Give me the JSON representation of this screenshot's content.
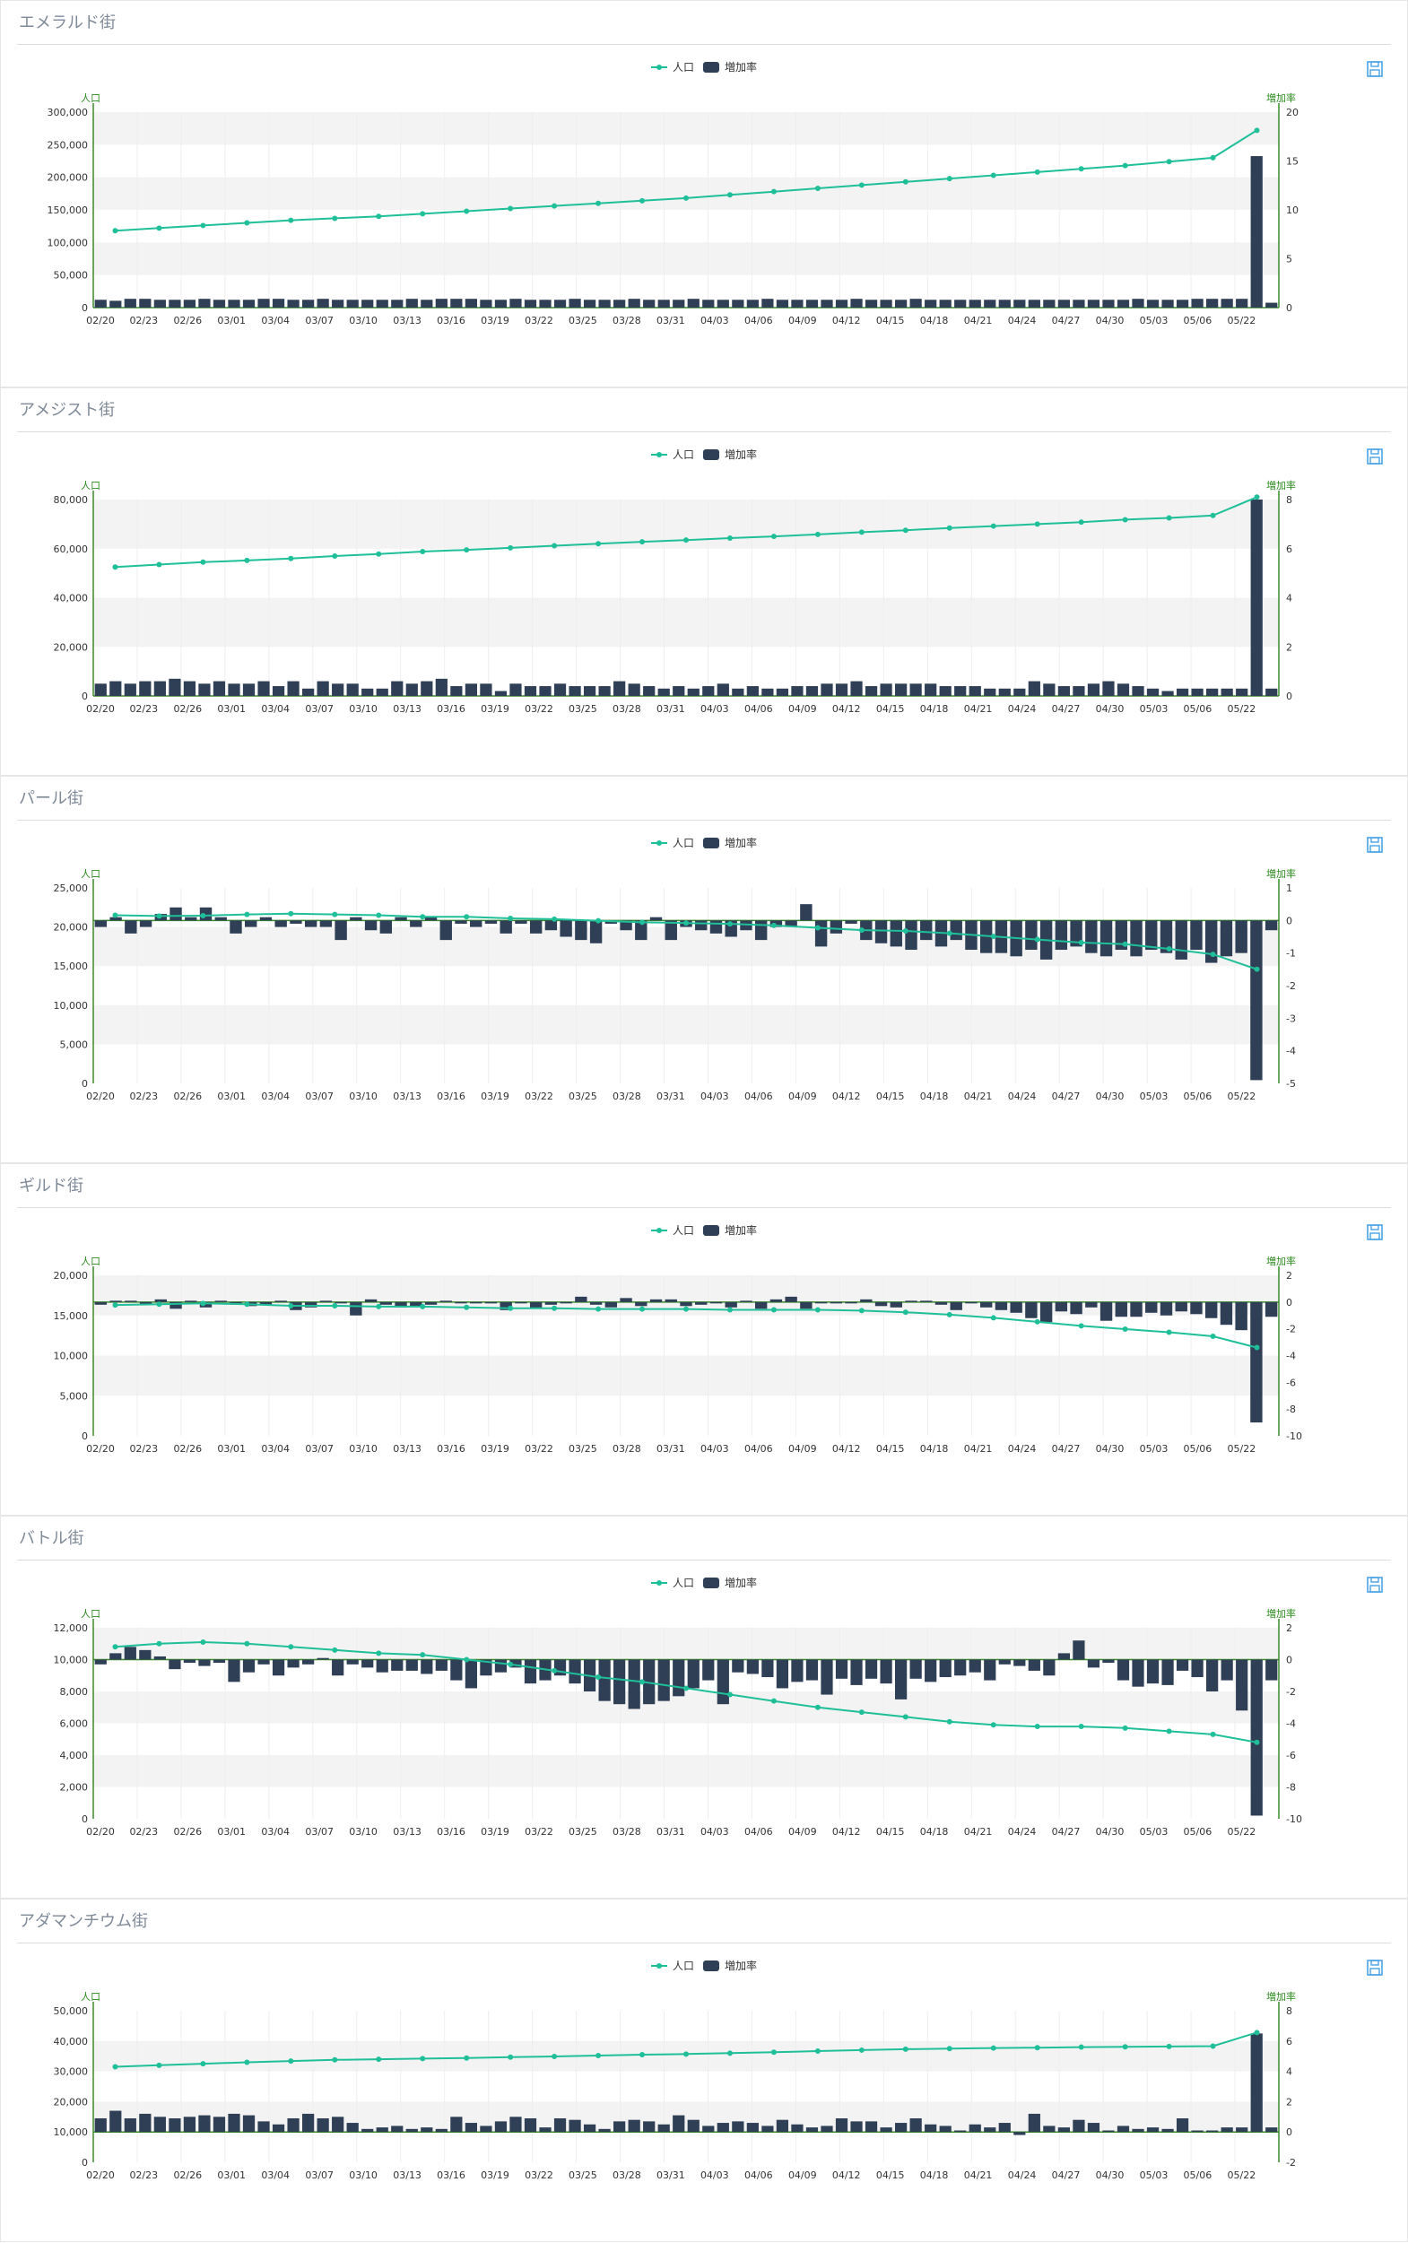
{
  "legend": {
    "line_label": "人口",
    "bar_label": "増加率"
  },
  "axis_names": {
    "left": "人口",
    "right": "増加率"
  },
  "colors": {
    "line": "#1fbf9a",
    "bar": "#2f3f55",
    "axis": "#3a8a2a",
    "band": "#f3f3f3",
    "title": "#7f8a99",
    "save_icon": "#4aa3e6"
  },
  "icons": {
    "save": "save-icon"
  },
  "x_tick_labels": [
    "02/20",
    "02/23",
    "02/26",
    "03/01",
    "03/04",
    "03/07",
    "03/10",
    "03/13",
    "03/16",
    "03/19",
    "03/22",
    "03/25",
    "03/28",
    "03/31",
    "04/03",
    "04/06",
    "04/09",
    "04/12",
    "04/15",
    "04/18",
    "04/21",
    "04/24",
    "04/27",
    "04/30",
    "05/03",
    "05/06",
    "05/22"
  ],
  "chart_data": [
    {
      "title": "エメラルド街",
      "type": "bar+line",
      "x": [
        "02/20",
        "02/23",
        "02/26",
        "03/01",
        "03/04",
        "03/07",
        "03/10",
        "03/13",
        "03/16",
        "03/19",
        "03/22",
        "03/25",
        "03/28",
        "03/31",
        "04/03",
        "04/06",
        "04/09",
        "04/12",
        "04/15",
        "04/18",
        "04/21",
        "04/24",
        "04/27",
        "04/30",
        "05/03",
        "05/06",
        "05/22"
      ],
      "y_left": {
        "min": 0,
        "max": 300000,
        "ticks": [
          "0",
          "50,000",
          "100,000",
          "150,000",
          "200,000",
          "250,000",
          "300,000"
        ]
      },
      "y_right": {
        "min": 0,
        "max": 20,
        "ticks": [
          "0",
          "5",
          "10",
          "15",
          "20"
        ]
      },
      "population": [
        118000,
        122000,
        126000,
        130000,
        134000,
        137000,
        140000,
        144000,
        148000,
        152000,
        156000,
        160000,
        164000,
        168000,
        173000,
        178000,
        183000,
        188000,
        193000,
        198000,
        203000,
        208000,
        213000,
        218000,
        224000,
        230000,
        272000
      ],
      "growth_rate": [
        0.8,
        0.7,
        0.9,
        0.9,
        0.8,
        0.8,
        0.8,
        0.9,
        0.8,
        0.8,
        0.8,
        0.9,
        0.9,
        0.8,
        0.8,
        0.9,
        0.8,
        0.8,
        0.8,
        0.8,
        0.8,
        0.9,
        0.8,
        0.9,
        0.9,
        0.9,
        0.8,
        0.8,
        0.9,
        0.8,
        0.8,
        0.8,
        0.9,
        0.8,
        0.8,
        0.8,
        0.9,
        0.8,
        0.8,
        0.8,
        0.9,
        0.8,
        0.8,
        0.8,
        0.8,
        0.9,
        0.8,
        0.8,
        0.8,
        0.8,
        0.8,
        0.9,
        0.8,
        0.8,
        0.8,
        0.9,
        0.8,
        0.8,
        0.8,
        0.8,
        0.8,
        0.8,
        0.8,
        0.8,
        0.8,
        0.8,
        0.8,
        0.8,
        0.8,
        0.8,
        0.9,
        0.8,
        0.8,
        0.8,
        0.9,
        0.9,
        0.9,
        0.9,
        15.5,
        0.5
      ]
    },
    {
      "title": "アメジスト街",
      "type": "bar+line",
      "x": [
        "02/20",
        "02/23",
        "02/26",
        "03/01",
        "03/04",
        "03/07",
        "03/10",
        "03/13",
        "03/16",
        "03/19",
        "03/22",
        "03/25",
        "03/28",
        "03/31",
        "04/03",
        "04/06",
        "04/09",
        "04/12",
        "04/15",
        "04/18",
        "04/21",
        "04/24",
        "04/27",
        "04/30",
        "05/03",
        "05/06",
        "05/22"
      ],
      "y_left": {
        "min": 0,
        "max": 80000,
        "ticks": [
          "0",
          "20,000",
          "40,000",
          "60,000",
          "80,000"
        ]
      },
      "y_right": {
        "min": 0,
        "max": 8,
        "ticks": [
          "0",
          "2",
          "4",
          "6",
          "8"
        ]
      },
      "population": [
        52500,
        53500,
        54500,
        55200,
        56000,
        57000,
        57800,
        58800,
        59500,
        60300,
        61200,
        62000,
        62800,
        63500,
        64300,
        65000,
        65800,
        66700,
        67500,
        68400,
        69200,
        70000,
        70800,
        71800,
        72500,
        73500,
        81000
      ],
      "growth_rate": [
        0.5,
        0.6,
        0.5,
        0.6,
        0.6,
        0.7,
        0.6,
        0.5,
        0.6,
        0.5,
        0.5,
        0.6,
        0.4,
        0.6,
        0.3,
        0.6,
        0.5,
        0.5,
        0.3,
        0.3,
        0.6,
        0.5,
        0.6,
        0.7,
        0.4,
        0.5,
        0.5,
        0.2,
        0.5,
        0.4,
        0.4,
        0.5,
        0.4,
        0.4,
        0.4,
        0.6,
        0.5,
        0.4,
        0.3,
        0.4,
        0.3,
        0.4,
        0.5,
        0.3,
        0.4,
        0.3,
        0.3,
        0.4,
        0.4,
        0.5,
        0.5,
        0.6,
        0.4,
        0.5,
        0.5,
        0.5,
        0.5,
        0.4,
        0.4,
        0.4,
        0.3,
        0.3,
        0.3,
        0.6,
        0.5,
        0.4,
        0.4,
        0.5,
        0.6,
        0.5,
        0.4,
        0.3,
        0.2,
        0.3,
        0.3,
        0.3,
        0.3,
        0.3,
        8.0,
        0.3
      ]
    },
    {
      "title": "パール街",
      "type": "bar+line",
      "x": [
        "02/20",
        "02/23",
        "02/26",
        "03/01",
        "03/04",
        "03/07",
        "03/10",
        "03/13",
        "03/16",
        "03/19",
        "03/22",
        "03/25",
        "03/28",
        "03/31",
        "04/03",
        "04/06",
        "04/09",
        "04/12",
        "04/15",
        "04/18",
        "04/21",
        "04/24",
        "04/27",
        "04/30",
        "05/03",
        "05/06",
        "05/22"
      ],
      "y_left": {
        "min": 0,
        "max": 25000,
        "ticks": [
          "0",
          "5,000",
          "10,000",
          "15,000",
          "20,000",
          "25,000"
        ]
      },
      "y_right": {
        "min": -5,
        "max": 1,
        "ticks": [
          "-5",
          "-4",
          "-3",
          "-2",
          "-1",
          "0",
          "1"
        ]
      },
      "population": [
        21500,
        21400,
        21450,
        21600,
        21700,
        21600,
        21500,
        21300,
        21300,
        21100,
        21000,
        20800,
        20600,
        20500,
        20400,
        20200,
        19900,
        19600,
        19500,
        19200,
        18800,
        18400,
        18000,
        17800,
        17200,
        16500,
        14600
      ],
      "growth_rate": [
        -0.2,
        0.1,
        -0.4,
        -0.2,
        0.2,
        0.4,
        0.1,
        0.4,
        0.1,
        -0.4,
        -0.2,
        0.1,
        -0.2,
        -0.1,
        -0.2,
        -0.2,
        -0.6,
        0.1,
        -0.3,
        -0.4,
        0.1,
        -0.2,
        0.1,
        -0.6,
        -0.1,
        -0.2,
        -0.1,
        -0.4,
        -0.1,
        -0.4,
        -0.3,
        -0.5,
        -0.6,
        -0.7,
        -0.1,
        -0.3,
        -0.6,
        0.1,
        -0.6,
        -0.2,
        -0.3,
        -0.4,
        -0.5,
        -0.3,
        -0.6,
        -0.2,
        -0.2,
        0.5,
        -0.8,
        -0.4,
        -0.1,
        -0.6,
        -0.7,
        -0.8,
        -0.9,
        -0.6,
        -0.8,
        -0.6,
        -0.9,
        -1.0,
        -1.0,
        -1.1,
        -0.9,
        -1.2,
        -0.9,
        -0.8,
        -1.0,
        -1.1,
        -0.9,
        -1.1,
        -0.9,
        -1.0,
        -1.2,
        -0.9,
        -1.3,
        -1.1,
        -1.0,
        -4.9,
        -0.3
      ]
    },
    {
      "title": "ギルド街",
      "type": "bar+line",
      "x": [
        "02/20",
        "02/23",
        "02/26",
        "03/01",
        "03/04",
        "03/07",
        "03/10",
        "03/13",
        "03/16",
        "03/19",
        "03/22",
        "03/25",
        "03/28",
        "03/31",
        "04/03",
        "04/06",
        "04/09",
        "04/12",
        "04/15",
        "04/18",
        "04/21",
        "04/24",
        "04/27",
        "04/30",
        "05/03",
        "05/06",
        "05/22"
      ],
      "y_left": {
        "min": 0,
        "max": 20000,
        "ticks": [
          "0",
          "5,000",
          "10,000",
          "15,000",
          "20,000"
        ]
      },
      "y_right": {
        "min": -10,
        "max": 2,
        "ticks": [
          "-10",
          "-8",
          "-6",
          "-4",
          "-2",
          "0",
          "2"
        ]
      },
      "population": [
        16300,
        16400,
        16500,
        16400,
        16200,
        16200,
        16100,
        16100,
        16000,
        15900,
        15900,
        15800,
        15800,
        15800,
        15700,
        15700,
        15700,
        15600,
        15400,
        15100,
        14700,
        14200,
        13700,
        13300,
        12900,
        12400,
        11000
      ],
      "growth_rate": [
        -0.2,
        0.1,
        0.1,
        -0.2,
        0.2,
        -0.5,
        0.1,
        -0.4,
        0.1,
        -0.2,
        -0.3,
        -0.2,
        0.1,
        -0.6,
        -0.4,
        0.1,
        -0.1,
        -1.0,
        0.2,
        -0.2,
        -0.4,
        -0.3,
        -0.2,
        0.1,
        -0.1,
        -0.1,
        -0.1,
        -0.6,
        -0.1,
        -0.5,
        -0.2,
        -0.1,
        0.4,
        -0.2,
        -0.4,
        0.3,
        -0.3,
        0.2,
        0.2,
        -0.3,
        -0.2,
        -0.1,
        -0.4,
        0.1,
        -0.5,
        0.2,
        0.4,
        -0.5,
        -0.1,
        -0.1,
        -0.1,
        0.2,
        -0.3,
        -0.4,
        0.1,
        0.1,
        -0.2,
        -0.6,
        -0.1,
        -0.4,
        -0.6,
        -0.8,
        -1.2,
        -1.5,
        -0.7,
        -0.9,
        -0.4,
        -1.4,
        -1.1,
        -1.1,
        -0.8,
        -1.0,
        -0.7,
        -0.9,
        -1.2,
        -1.7,
        -2.1,
        -9.0,
        -1.1
      ]
    },
    {
      "title": "バトル街",
      "type": "bar+line",
      "x": [
        "02/20",
        "02/23",
        "02/26",
        "03/01",
        "03/04",
        "03/07",
        "03/10",
        "03/13",
        "03/16",
        "03/19",
        "03/22",
        "03/25",
        "03/28",
        "03/31",
        "04/03",
        "04/06",
        "04/09",
        "04/12",
        "04/15",
        "04/18",
        "04/21",
        "04/24",
        "04/27",
        "04/30",
        "05/03",
        "05/06",
        "05/22"
      ],
      "y_left": {
        "min": 0,
        "max": 12000,
        "ticks": [
          "0",
          "2,000",
          "4,000",
          "6,000",
          "8,000",
          "10,000",
          "12,000"
        ]
      },
      "y_right": {
        "min": -10,
        "max": 2,
        "ticks": [
          "-10",
          "-8",
          "-6",
          "-4",
          "-2",
          "0",
          "2"
        ]
      },
      "population": [
        10800,
        11000,
        11100,
        11000,
        10800,
        10600,
        10400,
        10300,
        10000,
        9700,
        9300,
        8900,
        8600,
        8200,
        7800,
        7400,
        7000,
        6700,
        6400,
        6100,
        5900,
        5800,
        5800,
        5700,
        5500,
        5300,
        4800
      ],
      "growth_rate": [
        -0.3,
        0.4,
        0.8,
        0.6,
        0.2,
        -0.6,
        -0.2,
        -0.4,
        -0.2,
        -1.4,
        -0.8,
        -0.3,
        -1.0,
        -0.5,
        -0.3,
        0.1,
        -1.0,
        -0.3,
        -0.5,
        -0.8,
        -0.7,
        -0.7,
        -0.9,
        -0.7,
        -1.3,
        -1.8,
        -1.0,
        -0.8,
        -0.5,
        -1.5,
        -1.3,
        -1.0,
        -1.5,
        -2.0,
        -2.6,
        -2.8,
        -3.1,
        -2.8,
        -2.6,
        -2.3,
        -1.8,
        -1.3,
        -2.8,
        -0.8,
        -0.9,
        -1.1,
        -1.8,
        -1.4,
        -1.3,
        -2.2,
        -1.2,
        -1.6,
        -1.2,
        -1.5,
        -2.5,
        -1.2,
        -1.4,
        -1.1,
        -1.0,
        -0.8,
        -1.3,
        -0.3,
        -0.4,
        -0.7,
        -1.0,
        0.4,
        1.2,
        -0.5,
        -0.2,
        -1.3,
        -1.7,
        -1.5,
        -1.6,
        -0.7,
        -1.1,
        -2.0,
        -1.3,
        -3.2,
        -9.8,
        -1.3
      ]
    },
    {
      "title": "アダマンチウム街",
      "type": "bar+line",
      "x": [
        "02/20",
        "02/23",
        "02/26",
        "03/01",
        "03/04",
        "03/07",
        "03/10",
        "03/13",
        "03/16",
        "03/19",
        "03/22",
        "03/25",
        "03/28",
        "03/31",
        "04/03",
        "04/06",
        "04/09",
        "04/12",
        "04/15",
        "04/18",
        "04/21",
        "04/24",
        "04/27",
        "04/30",
        "05/03",
        "05/06",
        "05/22"
      ],
      "y_left": {
        "min": 0,
        "max": 50000,
        "ticks": [
          "0",
          "10,000",
          "20,000",
          "30,000",
          "40,000",
          "50,000"
        ]
      },
      "y_right": {
        "min": -2,
        "max": 8,
        "ticks": [
          "-2",
          "0",
          "2",
          "4",
          "6",
          "8"
        ]
      },
      "population": [
        31500,
        32000,
        32500,
        33000,
        33400,
        33800,
        34000,
        34200,
        34400,
        34700,
        34900,
        35200,
        35500,
        35700,
        36000,
        36300,
        36700,
        37000,
        37300,
        37500,
        37700,
        37800,
        38000,
        38100,
        38200,
        38300,
        42800
      ],
      "growth_rate": [
        0.9,
        1.4,
        0.9,
        1.2,
        1.0,
        0.9,
        1.0,
        1.1,
        1.0,
        1.2,
        1.1,
        0.7,
        0.5,
        0.9,
        1.2,
        0.9,
        1.0,
        0.6,
        0.2,
        0.3,
        0.4,
        0.2,
        0.3,
        0.2,
        1.0,
        0.6,
        0.4,
        0.7,
        1.0,
        0.9,
        0.3,
        0.9,
        0.8,
        0.5,
        0.2,
        0.7,
        0.8,
        0.7,
        0.5,
        1.1,
        0.8,
        0.4,
        0.6,
        0.7,
        0.6,
        0.4,
        0.8,
        0.5,
        0.3,
        0.4,
        0.9,
        0.7,
        0.7,
        0.3,
        0.6,
        0.9,
        0.5,
        0.4,
        0.1,
        0.5,
        0.3,
        0.6,
        -0.2,
        1.2,
        0.4,
        0.3,
        0.8,
        0.6,
        0.1,
        0.4,
        0.2,
        0.3,
        0.2,
        0.9,
        0.1,
        0.1,
        0.3,
        0.3,
        6.5,
        0.3
      ]
    }
  ]
}
